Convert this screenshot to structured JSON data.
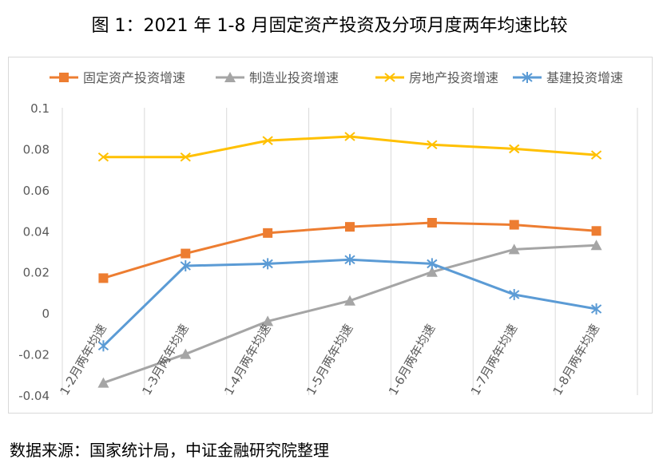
{
  "title": "图 1：2021 年 1-8 月固定资产投资及分项月度两年均速比较",
  "source": "数据来源：国家统计局，中证金融研究院整理",
  "chart_data": {
    "type": "line",
    "categories": [
      "1-2月两年均速",
      "1-3月两年均速",
      "1-4月两年均速",
      "1-5月两年均速",
      "1-6月两年均速",
      "1-7月两年均速",
      "1-8月两年均速"
    ],
    "ylim": [
      -0.04,
      0.1
    ],
    "yticks": [
      -0.04,
      -0.02,
      0,
      0.02,
      0.04,
      0.06,
      0.08,
      0.1
    ],
    "ytick_labels": [
      "-0.04",
      "-0.02",
      "0",
      "0.02",
      "0.04",
      "0.06",
      "0.08",
      "0.1"
    ],
    "grid": "vertical",
    "legend_position": "top",
    "series": [
      {
        "name": "固定资产投资增速",
        "color": "#ED7D31",
        "marker": "square",
        "values": [
          0.017,
          0.029,
          0.039,
          0.042,
          0.044,
          0.043,
          0.04
        ]
      },
      {
        "name": "制造业投资增速",
        "color": "#A5A5A5",
        "marker": "triangle",
        "values": [
          -0.034,
          -0.02,
          -0.004,
          0.006,
          0.02,
          0.031,
          0.033
        ]
      },
      {
        "name": "房地产投资增速",
        "color": "#FFC000",
        "marker": "x",
        "values": [
          0.076,
          0.076,
          0.084,
          0.086,
          0.082,
          0.08,
          0.077
        ]
      },
      {
        "name": "基建投资增速",
        "color": "#5B9BD5",
        "marker": "star",
        "values": [
          -0.016,
          0.023,
          0.024,
          0.026,
          0.024,
          0.009,
          0.002
        ]
      }
    ]
  }
}
